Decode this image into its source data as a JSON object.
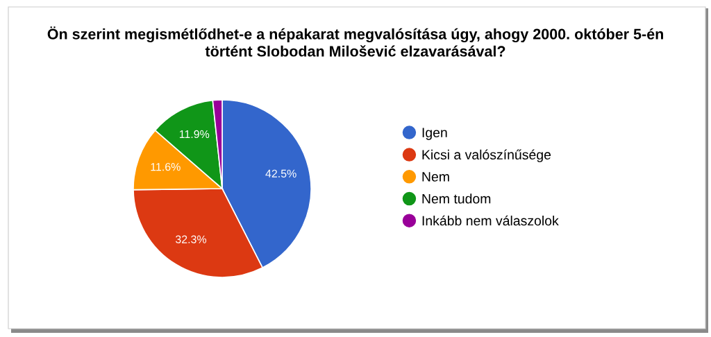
{
  "chart_data": {
    "type": "pie",
    "title": "Ön szerint megismétlődhet-e a népakarat megvalósítása úgy, ahogy 2000. október 5-én\ntörtént Slobodan Milošević elzavarásával?",
    "categories": [
      "Igen",
      "Kicsi a valószínűsége",
      "Nem",
      "Nem tudom",
      "Inkább nem válaszolok"
    ],
    "values": [
      42.5,
      32.3,
      11.6,
      11.9,
      1.7
    ],
    "colors": [
      "#3366cc",
      "#dc3912",
      "#ff9900",
      "#109618",
      "#990099"
    ],
    "value_labels": [
      "42.5%",
      "32.3%",
      "11.6%",
      "11.9%",
      null
    ],
    "legend": "right",
    "marker": "circle"
  }
}
